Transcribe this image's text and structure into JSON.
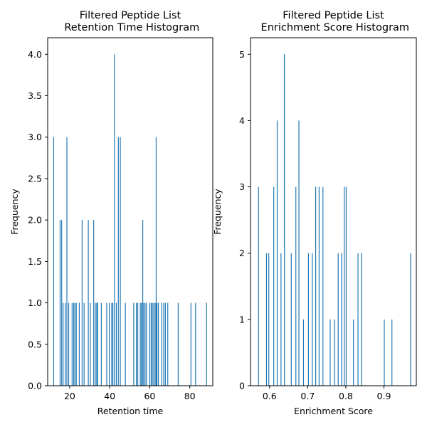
{
  "colors": {
    "bar": "#1f77b4",
    "axis": "#000000",
    "background": "#ffffff"
  },
  "chart_data": [
    {
      "type": "bar",
      "title": "Filtered Peptide List\n Retention Time Histogram",
      "xlabel": "Retention time",
      "ylabel": "Frequency",
      "xlim": [
        9.0,
        91.5
      ],
      "ylim": [
        0,
        4.2
      ],
      "xticks": [
        20,
        40,
        60,
        80
      ],
      "xtick_labels": [
        "20",
        "40",
        "60",
        "80"
      ],
      "yticks": [
        0.0,
        0.5,
        1.0,
        1.5,
        2.0,
        2.5,
        3.0,
        3.5,
        4.0
      ],
      "ytick_labels": [
        "0.0",
        "0.5",
        "1.0",
        "1.5",
        "2.0",
        "2.5",
        "3.0",
        "3.5",
        "4.0"
      ],
      "grid": false,
      "bar_width": 0.42,
      "x": [
        12.0,
        15.2,
        16.0,
        16.7,
        17.8,
        18.6,
        19.5,
        21.2,
        22.0,
        22.6,
        23.3,
        24.8,
        26.2,
        27.2,
        29.3,
        30.3,
        32.0,
        32.8,
        33.5,
        34.0,
        35.8,
        38.5,
        39.8,
        41.0,
        41.6,
        42.4,
        43.3,
        44.3,
        45.3,
        47.8,
        52.0,
        53.3,
        54.0,
        55.3,
        55.8,
        56.5,
        57.0,
        57.7,
        58.4,
        60.0,
        60.7,
        61.3,
        62.0,
        62.7,
        63.2,
        63.6,
        64.3,
        66.0,
        67.0,
        67.8,
        69.0,
        74.2,
        80.6,
        82.9,
        88.4
      ],
      "values": [
        3,
        2,
        2,
        1,
        1,
        3,
        1,
        1,
        1,
        1,
        1,
        1,
        2,
        1,
        2,
        1,
        2,
        1,
        1,
        1,
        1,
        1,
        1,
        1,
        1,
        4,
        1,
        3,
        3,
        1,
        1,
        1,
        1,
        1,
        1,
        2,
        1,
        1,
        1,
        1,
        1,
        1,
        1,
        1,
        3,
        1,
        1,
        1,
        1,
        1,
        1,
        1,
        1,
        1,
        1
      ]
    },
    {
      "type": "bar",
      "title": "Filtered Peptide List\n Enrichment Score Histogram",
      "xlabel": "Enrichment Score",
      "ylabel": "Frequency",
      "xlim": [
        0.55,
        0.985
      ],
      "ylim": [
        0,
        5.25
      ],
      "xticks": [
        0.6,
        0.7,
        0.8,
        0.9
      ],
      "xtick_labels": [
        "0.6",
        "0.7",
        "0.8",
        "0.9"
      ],
      "yticks": [
        0,
        1,
        2,
        3,
        4,
        5
      ],
      "ytick_labels": [
        "0",
        "1",
        "2",
        "3",
        "4",
        "5"
      ],
      "grid": false,
      "bar_width": 0.0022,
      "x": [
        0.571,
        0.592,
        0.598,
        0.611,
        0.62,
        0.63,
        0.639,
        0.657,
        0.669,
        0.677,
        0.689,
        0.702,
        0.712,
        0.721,
        0.73,
        0.74,
        0.759,
        0.771,
        0.78,
        0.789,
        0.796,
        0.801,
        0.82,
        0.832,
        0.841,
        0.901,
        0.921,
        0.97
      ],
      "values": [
        3,
        2,
        2,
        3,
        4,
        2,
        5,
        2,
        3,
        4,
        1,
        2,
        2,
        3,
        3,
        3,
        1,
        1,
        2,
        2,
        3,
        3,
        1,
        2,
        2,
        1,
        1,
        2
      ]
    }
  ]
}
